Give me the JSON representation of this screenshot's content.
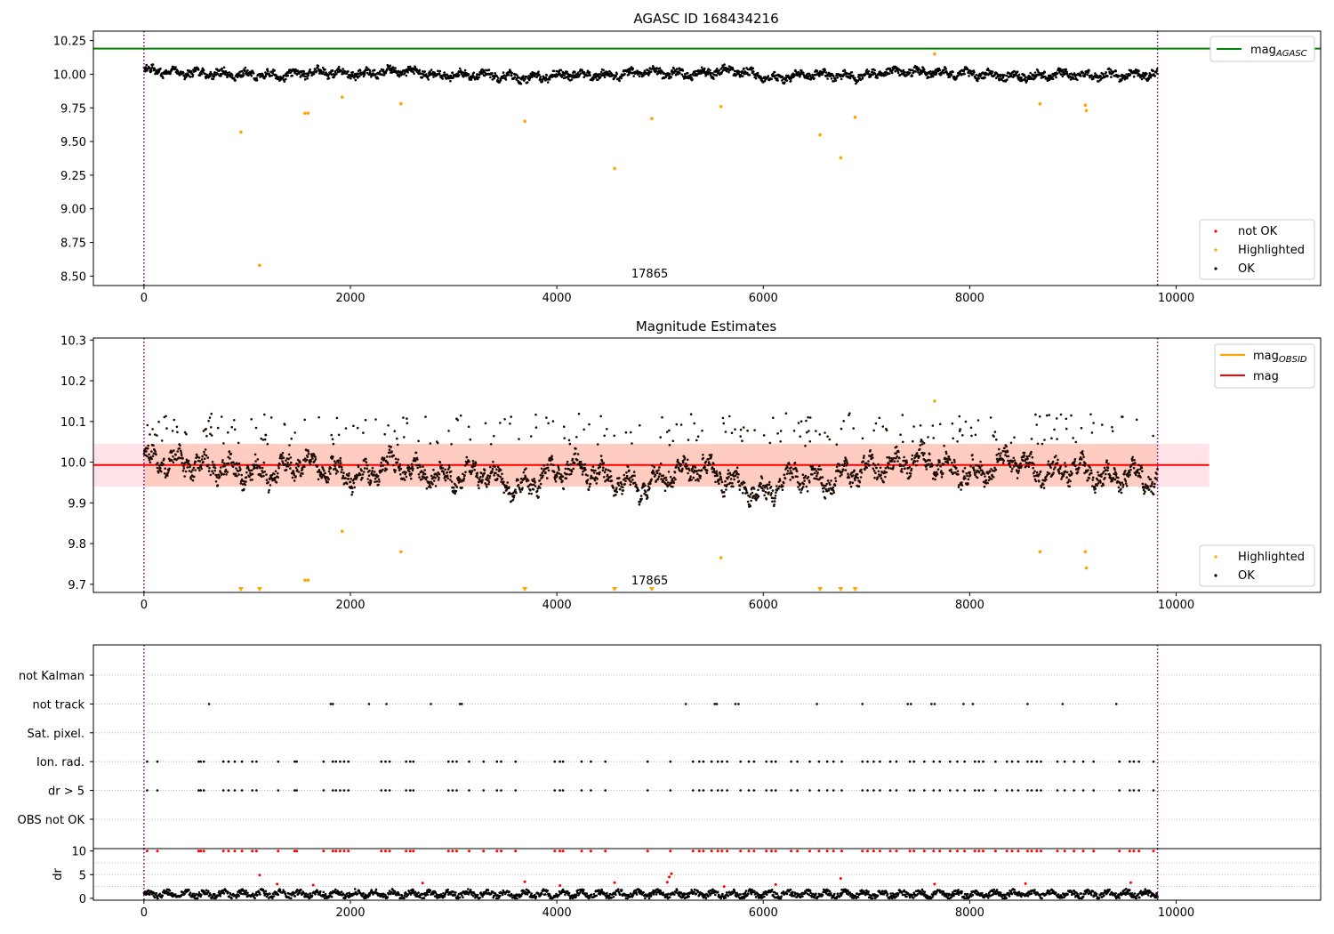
{
  "chart_data": [
    {
      "type": "scatter",
      "title": "AGASC ID 168434216",
      "annotation": "17865",
      "xlim": [
        -490,
        11400
      ],
      "ylim": [
        8.43,
        10.32
      ],
      "xticks": [
        0,
        2000,
        4000,
        6000,
        8000,
        10000
      ],
      "xtick_labels": [
        "0",
        "2000",
        "4000",
        "6000",
        "8000",
        "10000"
      ],
      "yticks": [
        8.5,
        8.75,
        9.0,
        9.25,
        9.5,
        9.75,
        10.0,
        10.25
      ],
      "ytick_labels": [
        "8.50",
        "8.75",
        "9.00",
        "9.25",
        "9.50",
        "9.75",
        "10.00",
        "10.25"
      ],
      "obsid_bounds": [
        0,
        9820
      ],
      "mag_agasc": 10.19,
      "legend_lines": [
        {
          "label": "mag",
          "sub": "AGASC",
          "color": "#008000"
        }
      ],
      "legend_points": [
        {
          "label": "not OK",
          "color": "#ff0000"
        },
        {
          "label": "Highlighted",
          "color": "#ffa500"
        },
        {
          "label": "OK",
          "color": "#000000"
        }
      ],
      "ok_trend": {
        "x": [
          0,
          500,
          900,
          1300,
          1700,
          2100,
          2500,
          2900,
          3300,
          3700,
          4100,
          4500,
          4900,
          5300,
          5700,
          6100,
          6500,
          6900,
          7300,
          7700,
          8100,
          8500,
          8900,
          9300,
          9800
        ],
        "y": [
          10.03,
          10.01,
          10.0,
          9.99,
          10.02,
          10.0,
          10.03,
          9.99,
          10.0,
          9.97,
          10.0,
          9.99,
          10.02,
          10.0,
          10.03,
          9.97,
          10.0,
          9.98,
          10.02,
          10.01,
          10.0,
          9.98,
          10.0,
          9.99,
          10.0
        ]
      },
      "highlighted": {
        "x": [
          940,
          1120,
          1560,
          1590,
          1920,
          2490,
          3690,
          4560,
          4920,
          5590,
          6550,
          6750,
          6890,
          7660,
          8680,
          9120,
          9130
        ],
        "y": [
          9.57,
          8.58,
          9.71,
          9.71,
          9.83,
          9.78,
          9.65,
          9.3,
          9.67,
          9.76,
          9.55,
          9.38,
          9.68,
          10.15,
          9.78,
          9.77,
          9.73
        ]
      }
    },
    {
      "type": "scatter",
      "title": "Magnitude Estimates",
      "annotation": "17865",
      "xlim": [
        -490,
        11400
      ],
      "ylim": [
        9.68,
        10.305
      ],
      "xticks": [
        0,
        2000,
        4000,
        6000,
        8000,
        10000
      ],
      "xtick_labels": [
        "0",
        "2000",
        "4000",
        "6000",
        "8000",
        "10000"
      ],
      "yticks": [
        9.7,
        9.8,
        9.9,
        10.0,
        10.1,
        10.2,
        10.3
      ],
      "ytick_labels": [
        "9.7",
        "9.8",
        "9.9",
        "10.0",
        "10.1",
        "10.2",
        "10.3"
      ],
      "obsid_bounds": [
        0,
        9820
      ],
      "mag_obsid": {
        "x": [
          -490,
          10320
        ],
        "y": 9.993,
        "band": [
          9.94,
          10.045
        ]
      },
      "mag": {
        "y": 9.993,
        "band": [
          9.94,
          10.045
        ]
      },
      "legend_lines": [
        {
          "label": "mag",
          "sub": "OBSID",
          "color": "#ffa500"
        },
        {
          "label": "mag",
          "sub": "",
          "color": "#ff0000"
        }
      ],
      "legend_points": [
        {
          "label": "Highlighted",
          "color": "#ffa500"
        },
        {
          "label": "OK",
          "color": "#000000"
        }
      ],
      "ok_trend": {
        "x": [
          0,
          300,
          600,
          900,
          1200,
          1500,
          1800,
          2100,
          2400,
          2700,
          3000,
          3300,
          3600,
          3900,
          4200,
          4500,
          4800,
          5100,
          5400,
          5700,
          6000,
          6300,
          6600,
          6900,
          7200,
          7500,
          7800,
          8100,
          8400,
          8700,
          9000,
          9300,
          9600,
          9800
        ],
        "y": [
          10.01,
          10.0,
          9.99,
          9.98,
          9.97,
          10.0,
          9.98,
          9.96,
          10.0,
          9.97,
          9.96,
          9.98,
          9.93,
          9.97,
          9.99,
          9.96,
          9.94,
          9.97,
          9.99,
          9.95,
          9.92,
          9.97,
          9.95,
          9.98,
          9.99,
          10.01,
          9.98,
          9.97,
          10.01,
          9.97,
          9.99,
          9.96,
          9.97,
          9.95
        ]
      },
      "highlighted": {
        "x": [
          1920,
          2490,
          1560,
          1590,
          5590,
          7660,
          8680,
          9120,
          9130
        ],
        "y": [
          9.83,
          9.78,
          9.71,
          9.71,
          9.765,
          10.15,
          9.78,
          9.78,
          9.74
        ]
      },
      "below_range_markers": {
        "x": [
          940,
          1120,
          3690,
          4560,
          4920,
          6550,
          6750,
          6890
        ],
        "y": 9.69
      }
    },
    {
      "type": "scatter",
      "title": "",
      "xlim": [
        -490,
        11400
      ],
      "xticks": [
        0,
        2000,
        4000,
        6000,
        8000,
        10000
      ],
      "xtick_labels": [
        "0",
        "2000",
        "4000",
        "6000",
        "8000",
        "10000"
      ],
      "obsid_bounds": [
        0,
        9820
      ],
      "flag_rows": [
        "not Kalman",
        "not track",
        "Sat. pixel.",
        "Ion. rad.",
        "dr > 5",
        "OBS not OK"
      ],
      "flags": {
        "not Kalman": [],
        "not track": [
          630,
          1810,
          1830,
          2180,
          2350,
          2780,
          3060,
          3080,
          5250,
          5530,
          5550,
          5730,
          5760,
          6520,
          6960,
          7400,
          7430,
          7630,
          7660,
          7940,
          8030,
          8560,
          8900,
          9420
        ],
        "Sat. pixel.": [],
        "Ion. rad.": [
          30,
          130,
          530,
          550,
          580,
          770,
          820,
          880,
          950,
          1050,
          1090,
          1300,
          1460,
          1480,
          1740,
          1830,
          1860,
          1900,
          1940,
          1980,
          2300,
          2340,
          2380,
          2540,
          2580,
          2610,
          2950,
          2990,
          3030,
          3150,
          3290,
          3420,
          3460,
          3600,
          3980,
          4030,
          4060,
          4240,
          4330,
          4470,
          4880,
          5100,
          5320,
          5380,
          5420,
          5500,
          5560,
          5600,
          5650,
          5780,
          5860,
          5910,
          6030,
          6080,
          6120,
          6270,
          6330,
          6450,
          6540,
          6620,
          6680,
          6760,
          6960,
          7010,
          7070,
          7130,
          7230,
          7290,
          7420,
          7460,
          7560,
          7650,
          7710,
          7810,
          7880,
          7950,
          8050,
          8090,
          8130,
          8250,
          8360,
          8410,
          8470,
          8560,
          8600,
          8650,
          8690,
          8850,
          8920,
          9010,
          9100,
          9200,
          9450,
          9550,
          9590,
          9640,
          9780
        ],
        "dr > 5": [
          30,
          130,
          530,
          550,
          580,
          770,
          820,
          880,
          950,
          1050,
          1090,
          1300,
          1460,
          1480,
          1740,
          1830,
          1860,
          1900,
          1940,
          1980,
          2300,
          2340,
          2380,
          2540,
          2580,
          2610,
          2950,
          2990,
          3030,
          3150,
          3290,
          3420,
          3460,
          3600,
          3980,
          4030,
          4060,
          4240,
          4330,
          4470,
          4880,
          5100,
          5320,
          5380,
          5420,
          5500,
          5560,
          5600,
          5650,
          5780,
          5860,
          5910,
          6030,
          6080,
          6120,
          6270,
          6330,
          6450,
          6540,
          6620,
          6680,
          6760,
          6960,
          7010,
          7070,
          7130,
          7230,
          7290,
          7420,
          7460,
          7560,
          7650,
          7710,
          7810,
          7880,
          7950,
          8050,
          8090,
          8130,
          8250,
          8360,
          8410,
          8470,
          8560,
          8600,
          8650,
          8690,
          8850,
          8920,
          9010,
          9100,
          9200,
          9450,
          9550,
          9590,
          9640,
          9780
        ],
        "OBS not OK": []
      }
    },
    {
      "type": "scatter",
      "title": "",
      "ylabel": "dr",
      "xlim": [
        -490,
        11400
      ],
      "ylim": [
        -0.4,
        10.5
      ],
      "xticks": [
        0,
        2000,
        4000,
        6000,
        8000,
        10000
      ],
      "xtick_labels": [
        "0",
        "2000",
        "4000",
        "6000",
        "8000",
        "10000"
      ],
      "yticks": [
        0,
        5,
        10
      ],
      "ytick_labels": [
        "0",
        "5",
        "10"
      ],
      "grid_y": [
        2.5,
        5,
        7.5
      ],
      "obsid_bounds": [
        0,
        9820
      ],
      "clipped_at": 10,
      "red_clipped_x": [
        30,
        130,
        530,
        550,
        580,
        770,
        820,
        880,
        950,
        1050,
        1090,
        1300,
        1460,
        1480,
        1740,
        1830,
        1860,
        1900,
        1940,
        1980,
        2300,
        2340,
        2380,
        2540,
        2580,
        2610,
        2950,
        2990,
        3030,
        3150,
        3290,
        3420,
        3460,
        3600,
        3980,
        4030,
        4060,
        4240,
        4330,
        4470,
        4880,
        5100,
        5320,
        5380,
        5420,
        5500,
        5560,
        5600,
        5650,
        5780,
        5860,
        5910,
        6030,
        6080,
        6120,
        6270,
        6330,
        6450,
        6540,
        6620,
        6680,
        6760,
        6960,
        7010,
        7070,
        7130,
        7230,
        7290,
        7420,
        7460,
        7560,
        7650,
        7710,
        7810,
        7880,
        7950,
        8050,
        8090,
        8130,
        8250,
        8360,
        8410,
        8470,
        8560,
        8600,
        8650,
        8690,
        8850,
        8920,
        9010,
        9100,
        9200,
        9450,
        9550,
        9590,
        9640,
        9780
      ],
      "red_spikes": {
        "x": [
          1120,
          1290,
          1640,
          2700,
          3690,
          4030,
          4560,
          5070,
          5090,
          5110,
          5620,
          6120,
          6750,
          7660,
          8540,
          9560
        ],
        "y": [
          4.9,
          3.0,
          2.8,
          3.2,
          3.5,
          2.7,
          3.3,
          3.4,
          4.5,
          5.2,
          2.5,
          2.9,
          4.2,
          3.0,
          3.1,
          3.3
        ]
      }
    }
  ]
}
